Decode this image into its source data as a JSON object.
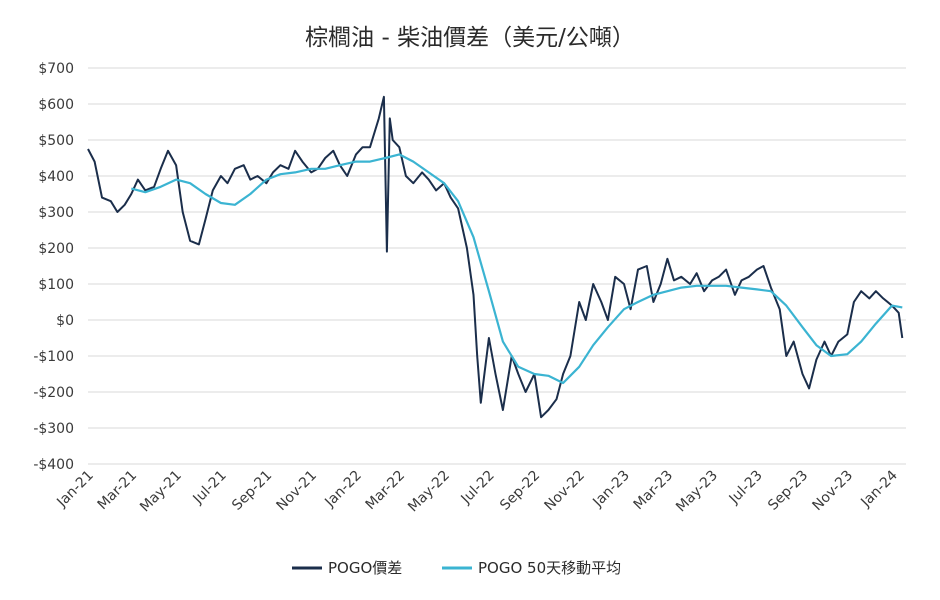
{
  "chart_data": {
    "type": "line",
    "title": "棕櫚油 - 柴油價差（美元/公噸）",
    "xlabel": "",
    "ylabel": "",
    "ylim": [
      -400,
      700
    ],
    "yticks": [
      700,
      600,
      500,
      400,
      300,
      200,
      100,
      0,
      -100,
      -200,
      -300,
      -400
    ],
    "ytick_labels": [
      "$700",
      "$600",
      "$500",
      "$400",
      "$300",
      "$200",
      "$100",
      "$0",
      "-$100",
      "-$200",
      "-$300",
      "-$400"
    ],
    "xticks": [
      "Jan-21",
      "Mar-21",
      "May-21",
      "Jul-21",
      "Sep-21",
      "Nov-21",
      "Jan-22",
      "Mar-22",
      "May-22",
      "Jul-22",
      "Sep-22",
      "Nov-22",
      "Jan-23",
      "Mar-23",
      "May-23",
      "Jul-23",
      "Sep-23",
      "Nov-23",
      "Jan-24"
    ],
    "grid": true,
    "legend_position": "bottom",
    "series": [
      {
        "name": "POGO價差",
        "color": "#1b2e4b",
        "x": [
          "2021-01-01",
          "2021-01-10",
          "2021-01-20",
          "2021-02-01",
          "2021-02-10",
          "2021-02-20",
          "2021-03-01",
          "2021-03-10",
          "2021-03-20",
          "2021-04-01",
          "2021-04-10",
          "2021-04-20",
          "2021-05-01",
          "2021-05-10",
          "2021-05-20",
          "2021-06-01",
          "2021-06-10",
          "2021-06-20",
          "2021-07-01",
          "2021-07-10",
          "2021-07-20",
          "2021-08-01",
          "2021-08-10",
          "2021-08-20",
          "2021-09-01",
          "2021-09-10",
          "2021-09-20",
          "2021-10-01",
          "2021-10-10",
          "2021-10-20",
          "2021-11-01",
          "2021-11-10",
          "2021-11-20",
          "2021-12-01",
          "2021-12-10",
          "2021-12-20",
          "2022-01-01",
          "2022-01-10",
          "2022-01-20",
          "2022-02-01",
          "2022-02-08",
          "2022-02-12",
          "2022-02-16",
          "2022-02-20",
          "2022-03-01",
          "2022-03-10",
          "2022-03-20",
          "2022-04-01",
          "2022-04-10",
          "2022-04-20",
          "2022-05-01",
          "2022-05-10",
          "2022-05-20",
          "2022-06-01",
          "2022-06-10",
          "2022-06-15",
          "2022-06-20",
          "2022-07-01",
          "2022-07-10",
          "2022-07-20",
          "2022-08-01",
          "2022-08-10",
          "2022-08-20",
          "2022-09-01",
          "2022-09-10",
          "2022-09-20",
          "2022-10-01",
          "2022-10-10",
          "2022-10-20",
          "2022-11-01",
          "2022-11-10",
          "2022-11-20",
          "2022-12-01",
          "2022-12-10",
          "2022-12-20",
          "2023-01-01",
          "2023-01-10",
          "2023-01-20",
          "2023-02-01",
          "2023-02-10",
          "2023-02-20",
          "2023-03-01",
          "2023-03-10",
          "2023-03-20",
          "2023-04-01",
          "2023-04-10",
          "2023-04-20",
          "2023-05-01",
          "2023-05-10",
          "2023-05-20",
          "2023-06-01",
          "2023-06-10",
          "2023-06-20",
          "2023-07-01",
          "2023-07-10",
          "2023-07-20",
          "2023-08-01",
          "2023-08-10",
          "2023-08-20",
          "2023-09-01",
          "2023-09-10",
          "2023-09-20",
          "2023-10-01",
          "2023-10-10",
          "2023-10-20",
          "2023-11-01",
          "2023-11-10",
          "2023-11-20",
          "2023-12-01",
          "2023-12-10",
          "2023-12-20",
          "2024-01-01",
          "2024-01-10",
          "2024-01-15"
        ],
        "y": [
          475,
          440,
          340,
          330,
          300,
          320,
          350,
          390,
          360,
          370,
          420,
          470,
          430,
          300,
          220,
          210,
          280,
          360,
          400,
          380,
          420,
          430,
          390,
          400,
          380,
          410,
          430,
          420,
          470,
          440,
          410,
          420,
          450,
          470,
          430,
          400,
          460,
          480,
          480,
          560,
          620,
          190,
          560,
          500,
          480,
          400,
          380,
          410,
          390,
          360,
          380,
          340,
          310,
          200,
          70,
          -100,
          -230,
          -50,
          -150,
          -250,
          -100,
          -150,
          -200,
          -150,
          -270,
          -250,
          -220,
          -150,
          -100,
          50,
          0,
          100,
          50,
          0,
          120,
          100,
          30,
          140,
          150,
          50,
          100,
          170,
          110,
          120,
          100,
          130,
          80,
          110,
          120,
          140,
          70,
          110,
          120,
          140,
          150,
          90,
          30,
          -100,
          -60,
          -150,
          -190,
          -110,
          -60,
          -100,
          -60,
          -40,
          50,
          80,
          60,
          80,
          60,
          40,
          20,
          -50
        ],
        "y_note": "approximate"
      },
      {
        "name": "POGO 50天移動平均",
        "color": "#3bb4d2",
        "x": [
          "2021-03-01",
          "2021-03-20",
          "2021-04-10",
          "2021-05-01",
          "2021-05-20",
          "2021-06-10",
          "2021-07-01",
          "2021-07-20",
          "2021-08-10",
          "2021-09-01",
          "2021-09-20",
          "2021-10-10",
          "2021-11-01",
          "2021-11-20",
          "2021-12-10",
          "2022-01-01",
          "2022-01-20",
          "2022-02-10",
          "2022-03-01",
          "2022-03-20",
          "2022-04-10",
          "2022-05-01",
          "2022-05-20",
          "2022-06-10",
          "2022-07-01",
          "2022-07-20",
          "2022-08-10",
          "2022-09-01",
          "2022-09-20",
          "2022-10-10",
          "2022-11-01",
          "2022-11-20",
          "2022-12-10",
          "2023-01-01",
          "2023-01-20",
          "2023-02-10",
          "2023-03-01",
          "2023-03-20",
          "2023-04-10",
          "2023-05-01",
          "2023-05-20",
          "2023-06-10",
          "2023-07-01",
          "2023-07-20",
          "2023-08-10",
          "2023-09-01",
          "2023-09-20",
          "2023-10-10",
          "2023-11-01",
          "2023-11-20",
          "2023-12-10",
          "2024-01-01",
          "2024-01-15"
        ],
        "y": [
          365,
          355,
          370,
          390,
          380,
          350,
          325,
          320,
          350,
          390,
          405,
          410,
          420,
          420,
          430,
          440,
          440,
          450,
          460,
          440,
          410,
          380,
          330,
          230,
          80,
          -60,
          -130,
          -150,
          -155,
          -175,
          -130,
          -70,
          -20,
          30,
          50,
          70,
          80,
          90,
          95,
          95,
          95,
          90,
          85,
          80,
          40,
          -20,
          -70,
          -100,
          -95,
          -60,
          -10,
          40,
          35
        ]
      }
    ]
  }
}
